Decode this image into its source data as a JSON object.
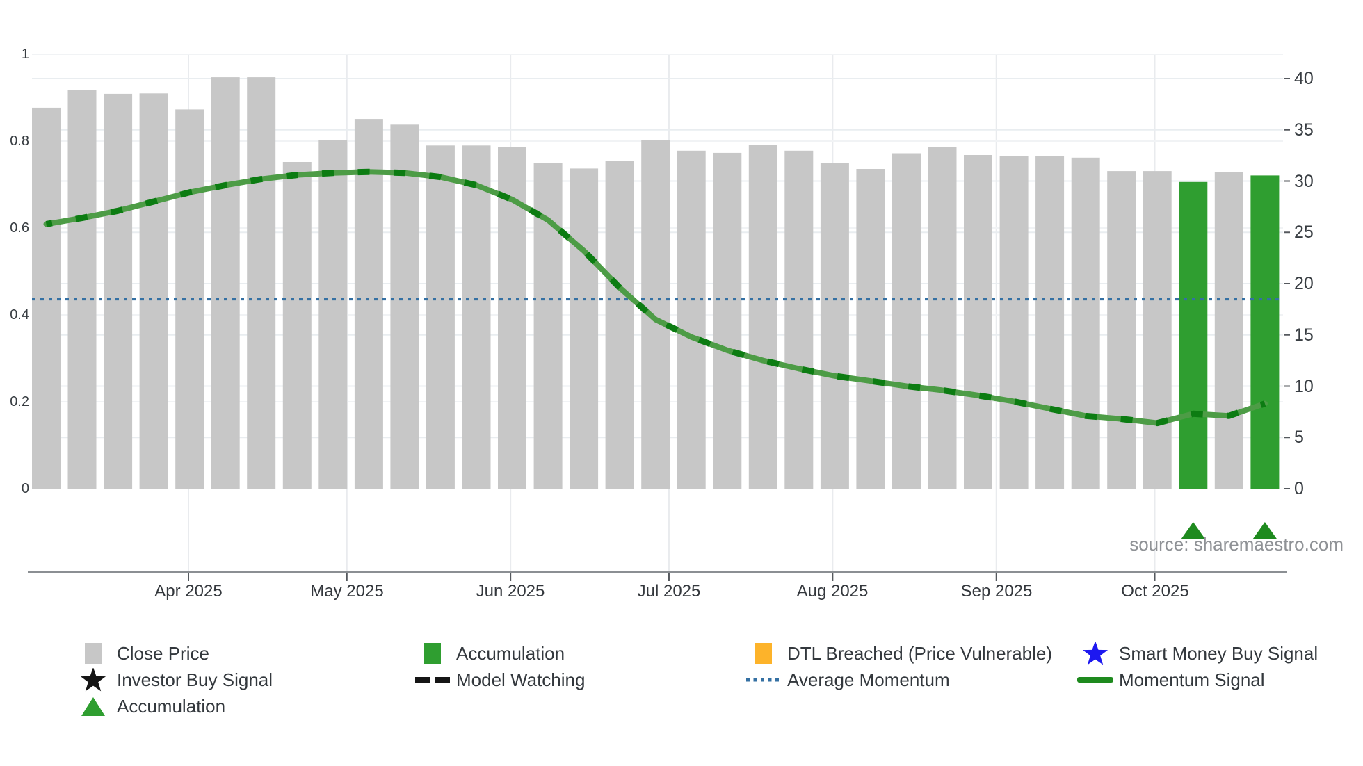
{
  "source_text": "source: sharemaestro.com",
  "colors": {
    "close_price": "#c7c7c7",
    "accumulation": "#2f9e30",
    "momentum_line": "#4d9c46",
    "momentum_dash": "#0c7c12",
    "average_momentum": "#3470a3",
    "smart_money_blue": "#1d18f0",
    "dtl_orange": "#fdb32a",
    "signal_black": "#151515",
    "triangle_green": "#1e8a1e",
    "axis_line": "#8b8f93"
  },
  "chart_data": {
    "type": "bar+line (dual y-axis)",
    "title": "",
    "x_axis": {
      "month_labels": [
        "Apr 2025",
        "May 2025",
        "Jun 2025",
        "Jul 2025",
        "Aug 2025",
        "Sep 2025",
        "Oct 2025"
      ]
    },
    "y_left": {
      "label": "",
      "ticks": [
        "0",
        "0.2",
        "0.4",
        "0.6",
        "0.8",
        "1"
      ],
      "ylim": [
        0,
        1.0
      ]
    },
    "y_right": {
      "label": "",
      "ticks": [
        "0",
        "5",
        "10",
        "15",
        "20",
        "25",
        "30",
        "35",
        "40"
      ],
      "ylim": [
        0,
        40
      ]
    },
    "series": [
      {
        "name": "Close Price",
        "type": "bar",
        "axis": "left",
        "values": [
          0.877,
          0.917,
          0.909,
          0.91,
          0.873,
          0.947,
          0.947,
          0.752,
          0.803,
          0.851,
          0.838,
          0.79,
          0.79,
          0.787,
          0.749,
          0.737,
          0.754,
          0.803,
          0.778,
          0.773,
          0.792,
          0.778,
          0.749,
          0.736,
          0.772,
          0.786,
          0.768,
          0.765,
          0.765,
          0.762,
          0.731,
          0.731,
          0.706,
          0.728,
          0.721
        ]
      },
      {
        "name": "Accumulation",
        "type": "bar-highlight",
        "axis": "left",
        "indices": [
          32,
          34
        ],
        "note": "bars at these indices are green and marked with a triangle below the axis"
      },
      {
        "name": "Momentum Signal",
        "type": "line",
        "axis": "right",
        "values": [
          25.8,
          26.4,
          27.1,
          28.0,
          28.9,
          29.6,
          30.2,
          30.6,
          30.8,
          30.9,
          30.8,
          30.4,
          29.6,
          28.2,
          26.2,
          23.2,
          19.6,
          16.5,
          14.8,
          13.5,
          12.5,
          11.7,
          11.0,
          10.5,
          10.0,
          9.6,
          9.1,
          8.5,
          7.8,
          7.1,
          6.8,
          6.4,
          7.3,
          7.1,
          8.3
        ]
      },
      {
        "name": "Average Momentum",
        "type": "horizontal-dotted-line",
        "axis": "right",
        "value": 18.5
      }
    ]
  },
  "legend": {
    "items": [
      {
        "column": 0,
        "row": 0,
        "marker": "square",
        "color_key": "close_price",
        "label": "Close Price"
      },
      {
        "column": 0,
        "row": 1,
        "marker": "star",
        "color_key": "signal_black",
        "label": "Investor Buy Signal"
      },
      {
        "column": 0,
        "row": 2,
        "marker": "triangle",
        "color_key": "accumulation",
        "label": "Accumulation"
      },
      {
        "column": 1,
        "row": 0,
        "marker": "square",
        "color_key": "accumulation",
        "label": "Accumulation"
      },
      {
        "column": 1,
        "row": 1,
        "marker": "dashes",
        "color_key": "signal_black",
        "label": "Model Watching"
      },
      {
        "column": 2,
        "row": 0,
        "marker": "square",
        "color_key": "dtl_orange",
        "label": "DTL Breached (Price Vulnerable)"
      },
      {
        "column": 2,
        "row": 1,
        "marker": "dotted",
        "color_key": "average_momentum",
        "label": "Average Momentum"
      },
      {
        "column": 3,
        "row": 0,
        "marker": "star",
        "color_key": "smart_money_blue",
        "label": "Smart Money Buy Signal"
      },
      {
        "column": 3,
        "row": 1,
        "marker": "line",
        "color_key": "triangle_green",
        "label": "Momentum Signal"
      }
    ]
  }
}
